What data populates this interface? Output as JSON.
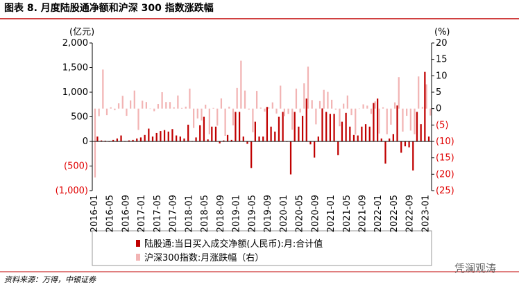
{
  "chart_data": {
    "type": "bar",
    "title": "图表 8. 月度陆股通净额和沪深 300 指数涨跌幅",
    "y_axis_label": "(亿元)",
    "y2_axis_label": "(%)",
    "source": "资料来源：万得，中银证券",
    "watermark": "凭澜观涛",
    "negative_label_color": "#e00000",
    "categories": [
      "2016-01",
      null,
      null,
      null,
      "2016-05",
      null,
      null,
      null,
      "2016-09",
      null,
      null,
      null,
      "2017-01",
      null,
      null,
      null,
      "2017-05",
      null,
      null,
      null,
      "2017-09",
      null,
      null,
      null,
      "2018-01",
      null,
      null,
      null,
      "2018-05",
      null,
      null,
      null,
      "2018-09",
      null,
      null,
      null,
      "2019-01",
      null,
      null,
      null,
      "2019-05",
      null,
      null,
      null,
      "2019-09",
      null,
      null,
      null,
      "2020-01",
      null,
      null,
      null,
      "2020-05",
      null,
      null,
      null,
      "2020-09",
      null,
      null,
      null,
      "2021-01",
      null,
      null,
      null,
      "2021-05",
      null,
      null,
      null,
      "2021-09",
      null,
      null,
      null,
      "2022-01",
      null,
      null,
      null,
      "2022-05",
      null,
      null,
      null,
      "2022-09",
      null,
      null,
      null,
      "2023-01",
      null
    ],
    "series": [
      {
        "name": "陆股通:当日买入成交净额(人民币):月:合计值",
        "color": "#c00000",
        "axis": "y",
        "values": [
          5,
          100,
          20,
          15,
          -10,
          30,
          60,
          120,
          10,
          20,
          30,
          60,
          80,
          130,
          260,
          100,
          170,
          210,
          230,
          200,
          250,
          120,
          100,
          60,
          340,
          10,
          80,
          330,
          500,
          40,
          300,
          300,
          -40,
          20,
          130,
          30,
          600,
          600,
          100,
          -50,
          -540,
          400,
          100,
          100,
          700,
          300,
          200,
          500,
          600,
          -10,
          -670,
          600,
          300,
          520,
          870,
          -60,
          -330,
          100,
          670,
          600,
          560,
          560,
          -280,
          400,
          580,
          300,
          130,
          120,
          300,
          350,
          300,
          780,
          870,
          60,
          -450,
          60,
          150,
          730,
          -230,
          -100,
          -120,
          -590,
          600,
          350,
          1413,
          100
        ]
      },
      {
        "name": "沪深300指数:月涨跌幅（右）",
        "color": "#f2b4b4",
        "axis": "y2",
        "values": [
          -21,
          -2.3,
          11.9,
          -2,
          0.4,
          -0.5,
          1.6,
          3.9,
          -2.2,
          2.5,
          5.5,
          -6.5,
          2.4,
          2,
          -0.1,
          -0.8,
          1.4,
          5,
          2,
          2,
          0.4,
          4,
          0.2,
          0.6,
          6.1,
          -5.9,
          -3,
          -3.6,
          1.2,
          -7.8,
          0.2,
          -5.2,
          3.1,
          -8.3,
          0.6,
          -5.1,
          6.3,
          14.6,
          5.5,
          -0.3,
          -7.2,
          5.4,
          0.3,
          -0.9,
          0.4,
          1.9,
          -1.5,
          7,
          -2.3,
          -1.6,
          -6.4,
          6.1,
          -1.2,
          7.7,
          12.8,
          2.6,
          -4.8,
          2.3,
          5.7,
          5.1,
          2.7,
          -0.3,
          -5.4,
          1.5,
          4,
          -2,
          -7.9,
          -0.1,
          1.3,
          0.9,
          -1.6,
          2.2,
          -7.6,
          0.4,
          -7.8,
          -4.9,
          1.9,
          9.6,
          -7,
          -2.2,
          -6.7,
          -7.8,
          9.8,
          0.5,
          7.4,
          -2.1
        ]
      }
    ],
    "ylim": [
      -1000,
      2000
    ],
    "yticks": [
      {
        "value": -1000,
        "label": "(1,000)"
      },
      {
        "value": -500,
        "label": "(500)"
      },
      0,
      500,
      {
        "value": 1000,
        "label": "1,000"
      },
      {
        "value": 1500,
        "label": "1,500"
      },
      {
        "value": 2000,
        "label": "2,000"
      }
    ],
    "y2lim": [
      -25,
      20
    ],
    "y2ticks": [
      {
        "value": -25,
        "label": "(25)"
      },
      {
        "value": -20,
        "label": "(20)"
      },
      {
        "value": -15,
        "label": "(15)"
      },
      {
        "value": -10,
        "label": "(10)"
      },
      {
        "value": -5,
        "label": "(5)"
      },
      0,
      5,
      10,
      15,
      20
    ]
  }
}
